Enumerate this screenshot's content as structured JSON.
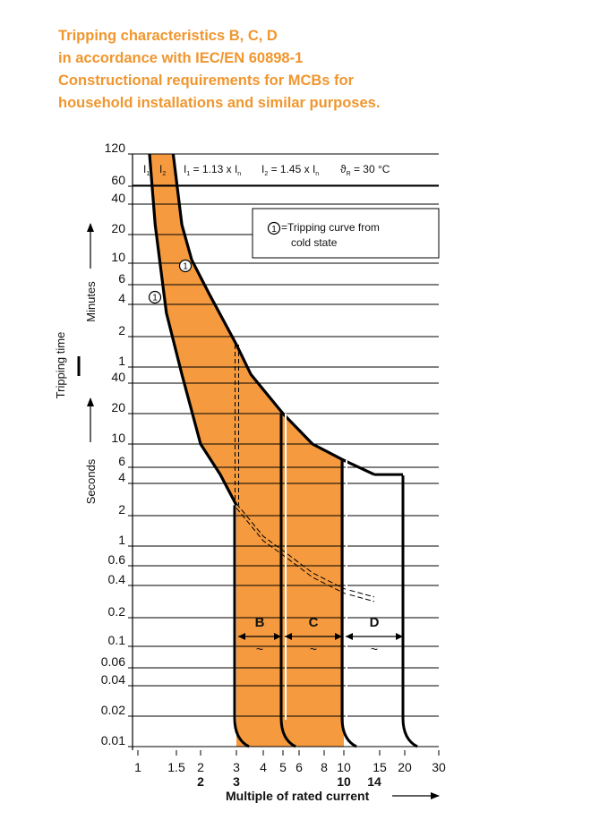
{
  "heading": {
    "lines": [
      "Tripping characteristics B, C, D",
      "in accordance with IEC/EN 60898-1",
      "Constructional requirements for MCBs for",
      "household installations and similar purposes."
    ]
  },
  "colors": {
    "accent": "#f0962e",
    "band_fill": "#f59a3e",
    "grid": "#000000",
    "text": "#111111"
  },
  "header_row": {
    "i1": "I",
    "i1_sub": "1",
    "i2": "I",
    "i2_sub": "2",
    "formula1": "I",
    "formula1_sub": "1",
    "formula1_rest": " = 1.13 x I",
    "formula1_sub2": "n",
    "formula2": "I",
    "formula2_sub": "2",
    "formula2_rest": " = 1.45 x I",
    "formula2_sub2": "n",
    "temp": "ϑ",
    "temp_sub": "R",
    "temp_rest": " = 30 °C"
  },
  "legend": {
    "marker": "1",
    "line1": "=Tripping curve from",
    "line2": "cold state"
  },
  "chart_data": {
    "type": "area",
    "title": "Tripping characteristics B, C, D",
    "xlabel": "Multiple of rated current",
    "ylabel": "Tripping time",
    "ylabel_minutes": "Minutes",
    "ylabel_seconds": "Seconds",
    "x_scale": "log",
    "x_ticks": [
      {
        "value": 1,
        "label": "1"
      },
      {
        "value": 1.5,
        "label": "1.5"
      },
      {
        "value": 2,
        "label": "2"
      },
      {
        "value": 3,
        "label": "3"
      },
      {
        "value": 4,
        "label": "4"
      },
      {
        "value": 5,
        "label": "5"
      },
      {
        "value": 6,
        "label": "6"
      },
      {
        "value": 8,
        "label": "8"
      },
      {
        "value": 10,
        "label": "10"
      },
      {
        "value": 15,
        "label": "15"
      },
      {
        "value": 20,
        "label": "20"
      },
      {
        "value": 30,
        "label": "30"
      }
    ],
    "x_ticks_bold": [
      {
        "value": 2,
        "label": "2"
      },
      {
        "value": 3,
        "label": "3"
      },
      {
        "value": 10,
        "label": "10"
      },
      {
        "value": 14,
        "label": "14"
      }
    ],
    "y_scale": "log (seconds)",
    "y_ticks": [
      {
        "seconds": 7200,
        "label": "120"
      },
      {
        "seconds": 3600,
        "label": "60"
      },
      {
        "seconds": 2400,
        "label": "40"
      },
      {
        "seconds": 1200,
        "label": "20"
      },
      {
        "seconds": 600,
        "label": "10"
      },
      {
        "seconds": 360,
        "label": "6"
      },
      {
        "seconds": 240,
        "label": "4"
      },
      {
        "seconds": 120,
        "label": "2"
      },
      {
        "seconds": 60,
        "label": "1"
      },
      {
        "seconds": 40,
        "label": "40"
      },
      {
        "seconds": 20,
        "label": "20"
      },
      {
        "seconds": 10,
        "label": "10"
      },
      {
        "seconds": 6,
        "label": "6"
      },
      {
        "seconds": 4,
        "label": "4"
      },
      {
        "seconds": 2,
        "label": "2"
      },
      {
        "seconds": 1,
        "label": "1"
      },
      {
        "seconds": 0.6,
        "label": "0.6"
      },
      {
        "seconds": 0.4,
        "label": "0.4"
      },
      {
        "seconds": 0.2,
        "label": "0.2"
      },
      {
        "seconds": 0.1,
        "label": "0.1"
      },
      {
        "seconds": 0.06,
        "label": "0.06"
      },
      {
        "seconds": 0.04,
        "label": "0.04"
      },
      {
        "seconds": 0.02,
        "label": "0.02"
      },
      {
        "seconds": 0.01,
        "label": "0.01"
      }
    ],
    "upper_curve": [
      [
        1.45,
        7200
      ],
      [
        1.6,
        1500
      ],
      [
        1.8,
        650
      ],
      [
        2.2,
        300
      ],
      [
        3,
        100
      ],
      [
        3.5,
        50
      ],
      [
        5,
        20
      ],
      [
        7,
        10
      ],
      [
        10,
        7
      ],
      [
        14,
        5
      ]
    ],
    "lower_curve": [
      [
        1.13,
        7200
      ],
      [
        1.2,
        1500
      ],
      [
        1.35,
        200
      ],
      [
        1.6,
        50
      ],
      [
        2,
        10
      ],
      [
        2.5,
        5
      ],
      [
        3,
        2.5
      ],
      [
        4,
        1.2
      ],
      [
        5,
        0.85
      ],
      [
        7,
        0.5
      ],
      [
        10,
        0.36
      ],
      [
        14,
        0.3
      ]
    ],
    "series": [
      {
        "name": "B",
        "instantaneous_min": 3,
        "instantaneous_max": 5
      },
      {
        "name": "C",
        "instantaneous_min": 5,
        "instantaneous_max": 10
      },
      {
        "name": "D",
        "instantaneous_min": 10,
        "instantaneous_max": 20
      }
    ],
    "band_symbol": "~"
  }
}
